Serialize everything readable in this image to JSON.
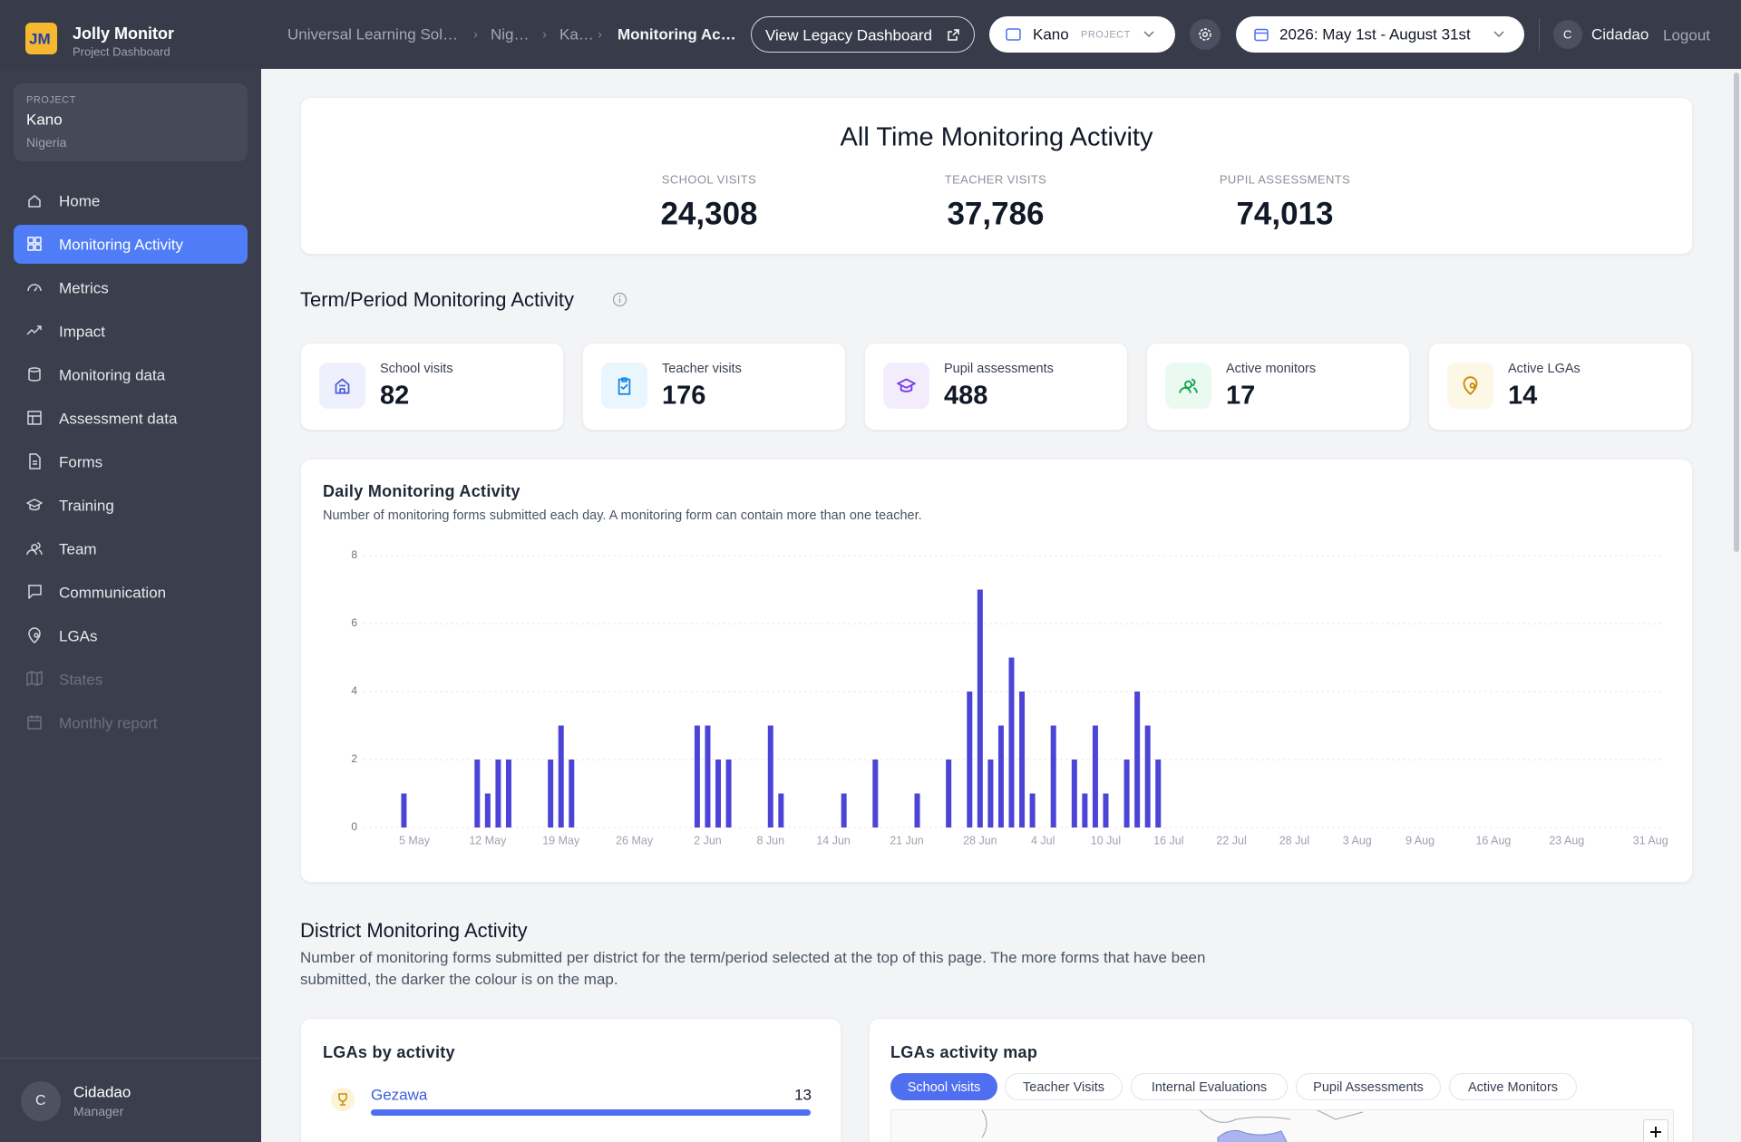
{
  "app": {
    "logo": "JM",
    "name": "Jolly Monitor",
    "subtitle": "Project Dashboard"
  },
  "breadcrumbs": [
    "Universal Learning Sol…",
    "Nig…",
    "Ka…",
    "Monitoring Ac…"
  ],
  "header": {
    "legacy_button": "View Legacy Dashboard",
    "project_selector": {
      "name": "Kano",
      "tag": "PROJECT"
    },
    "date_range": "2026: May 1st - August 31st",
    "user_initial": "C",
    "user": "Cidadao",
    "logout": "Logout"
  },
  "sidebar": {
    "project": {
      "label": "PROJECT",
      "name": "Kano",
      "country": "Nigeria"
    },
    "nav": [
      "Home",
      "Monitoring Activity",
      "Metrics",
      "Impact",
      "Monitoring data",
      "Assessment data",
      "Forms",
      "Training",
      "Team",
      "Communication",
      "LGAs",
      "States",
      "Monthly report"
    ],
    "user": {
      "initial": "C",
      "name": "Cidadao",
      "role": "Manager"
    }
  },
  "all_time": {
    "title": "All Time Monitoring Activity",
    "stats": [
      {
        "label": "SCHOOL VISITS",
        "value": "24,308"
      },
      {
        "label": "TEACHER VISITS",
        "value": "37,786"
      },
      {
        "label": "PUPIL ASSESSMENTS",
        "value": "74,013"
      }
    ]
  },
  "term": {
    "title": "Term/Period Monitoring Activity",
    "cards": [
      {
        "label": "School visits",
        "value": 82
      },
      {
        "label": "Teacher visits",
        "value": 176
      },
      {
        "label": "Pupil assessments",
        "value": 488
      },
      {
        "label": "Active monitors",
        "value": 17
      },
      {
        "label": "Active LGAs",
        "value": 14
      }
    ]
  },
  "chart_data": {
    "type": "bar",
    "title": "Daily Monitoring Activity",
    "subtitle": "Number of monitoring forms submitted each day. A monitoring form can contain more than one teacher.",
    "color": "#4b44d6",
    "grid": true,
    "ylim": [
      0,
      8
    ],
    "yticks": [
      0,
      2,
      4,
      6,
      8
    ],
    "categories": [
      null,
      null,
      null,
      null,
      "5 May",
      null,
      null,
      null,
      null,
      null,
      null,
      "12 May",
      null,
      null,
      null,
      null,
      null,
      null,
      "19 May",
      null,
      null,
      null,
      null,
      null,
      null,
      "26 May",
      null,
      null,
      null,
      null,
      null,
      null,
      "2 Jun",
      null,
      null,
      null,
      null,
      null,
      "8 Jun",
      null,
      null,
      null,
      null,
      null,
      "14 Jun",
      null,
      null,
      null,
      null,
      null,
      null,
      "21 Jun",
      null,
      null,
      null,
      null,
      null,
      null,
      "28 Jun",
      null,
      null,
      null,
      null,
      null,
      "4 Jul",
      null,
      null,
      null,
      null,
      null,
      "10 Jul",
      null,
      null,
      null,
      null,
      null,
      "16 Jul",
      null,
      null,
      null,
      null,
      null,
      "22 Jul",
      null,
      null,
      null,
      null,
      null,
      "28 Jul",
      null,
      null,
      null,
      null,
      null,
      "3 Aug",
      null,
      null,
      null,
      null,
      null,
      "9 Aug",
      null,
      null,
      null,
      null,
      null,
      null,
      "16 Aug",
      null,
      null,
      null,
      null,
      null,
      null,
      "23 Aug",
      null,
      null,
      null,
      null,
      null,
      null,
      null,
      "31 Aug"
    ],
    "values": [
      0,
      0,
      0,
      1,
      0,
      0,
      0,
      0,
      0,
      0,
      2,
      1,
      2,
      2,
      0,
      0,
      0,
      2,
      3,
      2,
      0,
      0,
      0,
      0,
      0,
      0,
      0,
      0,
      0,
      0,
      0,
      3,
      3,
      2,
      2,
      0,
      0,
      0,
      3,
      1,
      0,
      0,
      0,
      0,
      0,
      1,
      0,
      0,
      2,
      0,
      0,
      0,
      1,
      0,
      0,
      2,
      0,
      4,
      7,
      2,
      3,
      5,
      4,
      1,
      0,
      3,
      0,
      2,
      1,
      3,
      1,
      0,
      2,
      4,
      3,
      2,
      0,
      0,
      0,
      0,
      0,
      0,
      0,
      0,
      0,
      0,
      0,
      0,
      0,
      0,
      0,
      0,
      0,
      0,
      0,
      0,
      0,
      0,
      0,
      0,
      0,
      0,
      0,
      0,
      0,
      0,
      0,
      0,
      0,
      0,
      0,
      0,
      0,
      0,
      0,
      0,
      0,
      0,
      0,
      0,
      0,
      0,
      0
    ]
  },
  "district": {
    "title": "District Monitoring Activity",
    "description": "Number of monitoring forms submitted per district for the term/period selected at the top of this page. The more forms that have been submitted, the darker the colour is on the map."
  },
  "lgas_by_activity": {
    "title": "LGAs by activity",
    "items": [
      {
        "name": "Gezawa",
        "value": 13
      }
    ]
  },
  "map": {
    "title": "LGAs activity map",
    "tabs": [
      "School visits",
      "Teacher Visits",
      "Internal Evaluations",
      "Pupil Assessments",
      "Active Monitors"
    ]
  }
}
